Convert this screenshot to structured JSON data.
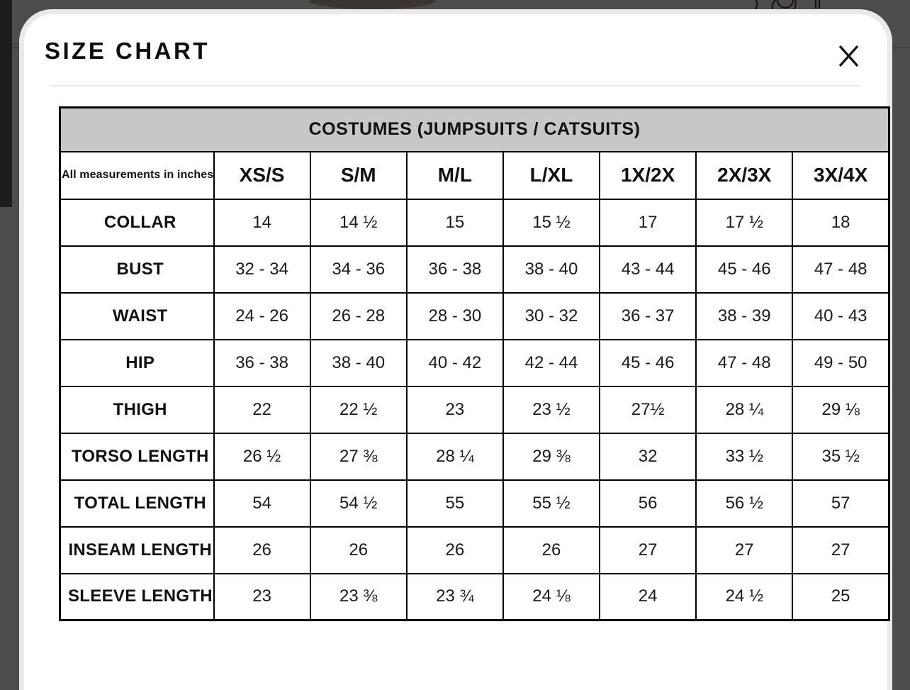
{
  "modal": {
    "title": "SIZE CHART",
    "close_label": "X"
  },
  "table": {
    "caption": "COSTUMES (JUMPSUITS / CATSUITS)",
    "note": "All measurements in inches",
    "sizes": [
      "XS/S",
      "S/M",
      "M/L",
      "L/XL",
      "1X/2X",
      "2X/3X",
      "3X/4X"
    ],
    "rows": [
      {
        "label": "COLLAR",
        "values": [
          "14",
          "14 ½",
          "15",
          "15 ½",
          "17",
          "17 ½",
          "18"
        ]
      },
      {
        "label": "BUST",
        "values": [
          "32 - 34",
          "34 - 36",
          "36 - 38",
          "38 - 40",
          "43 - 44",
          "45 - 46",
          "47 - 48"
        ]
      },
      {
        "label": "WAIST",
        "values": [
          "24 - 26",
          "26 - 28",
          "28 - 30",
          "30 - 32",
          "36 - 37",
          "38 - 39",
          "40 - 43"
        ]
      },
      {
        "label": "HIP",
        "values": [
          "36 - 38",
          "38 - 40",
          "40 - 42",
          "42 - 44",
          "45 - 46",
          "47 - 48",
          "49 - 50"
        ]
      },
      {
        "label": "THIGH",
        "values": [
          "22",
          "22 ½",
          "23",
          "23 ½",
          "27½",
          "28 ¼",
          "29 ⅛"
        ]
      },
      {
        "label": "TORSO LENGTH",
        "values": [
          "26 ½",
          "27 ⅜",
          "28 ¼",
          "29 ⅜",
          "32",
          "33 ½",
          "35 ½"
        ]
      },
      {
        "label": "TOTAL LENGTH",
        "values": [
          "54",
          "54 ½",
          "55",
          "55 ½",
          "56",
          "56 ½",
          "57"
        ]
      },
      {
        "label": "INSEAM LENGTH",
        "values": [
          "26",
          "26",
          "26",
          "26",
          "27",
          "27",
          "27"
        ]
      },
      {
        "label": "SLEEVE LENGTH",
        "values": [
          "23",
          "23 ⅜",
          "23 ¾",
          "24 ⅛",
          "24",
          "24 ½",
          "25"
        ]
      }
    ]
  },
  "colors": {
    "backdrop": "#4e4c4b",
    "modal_ring": "#e9e9e9",
    "caption_bg": "#c7c7c7",
    "table_border": "#000000",
    "text": "#111111"
  }
}
